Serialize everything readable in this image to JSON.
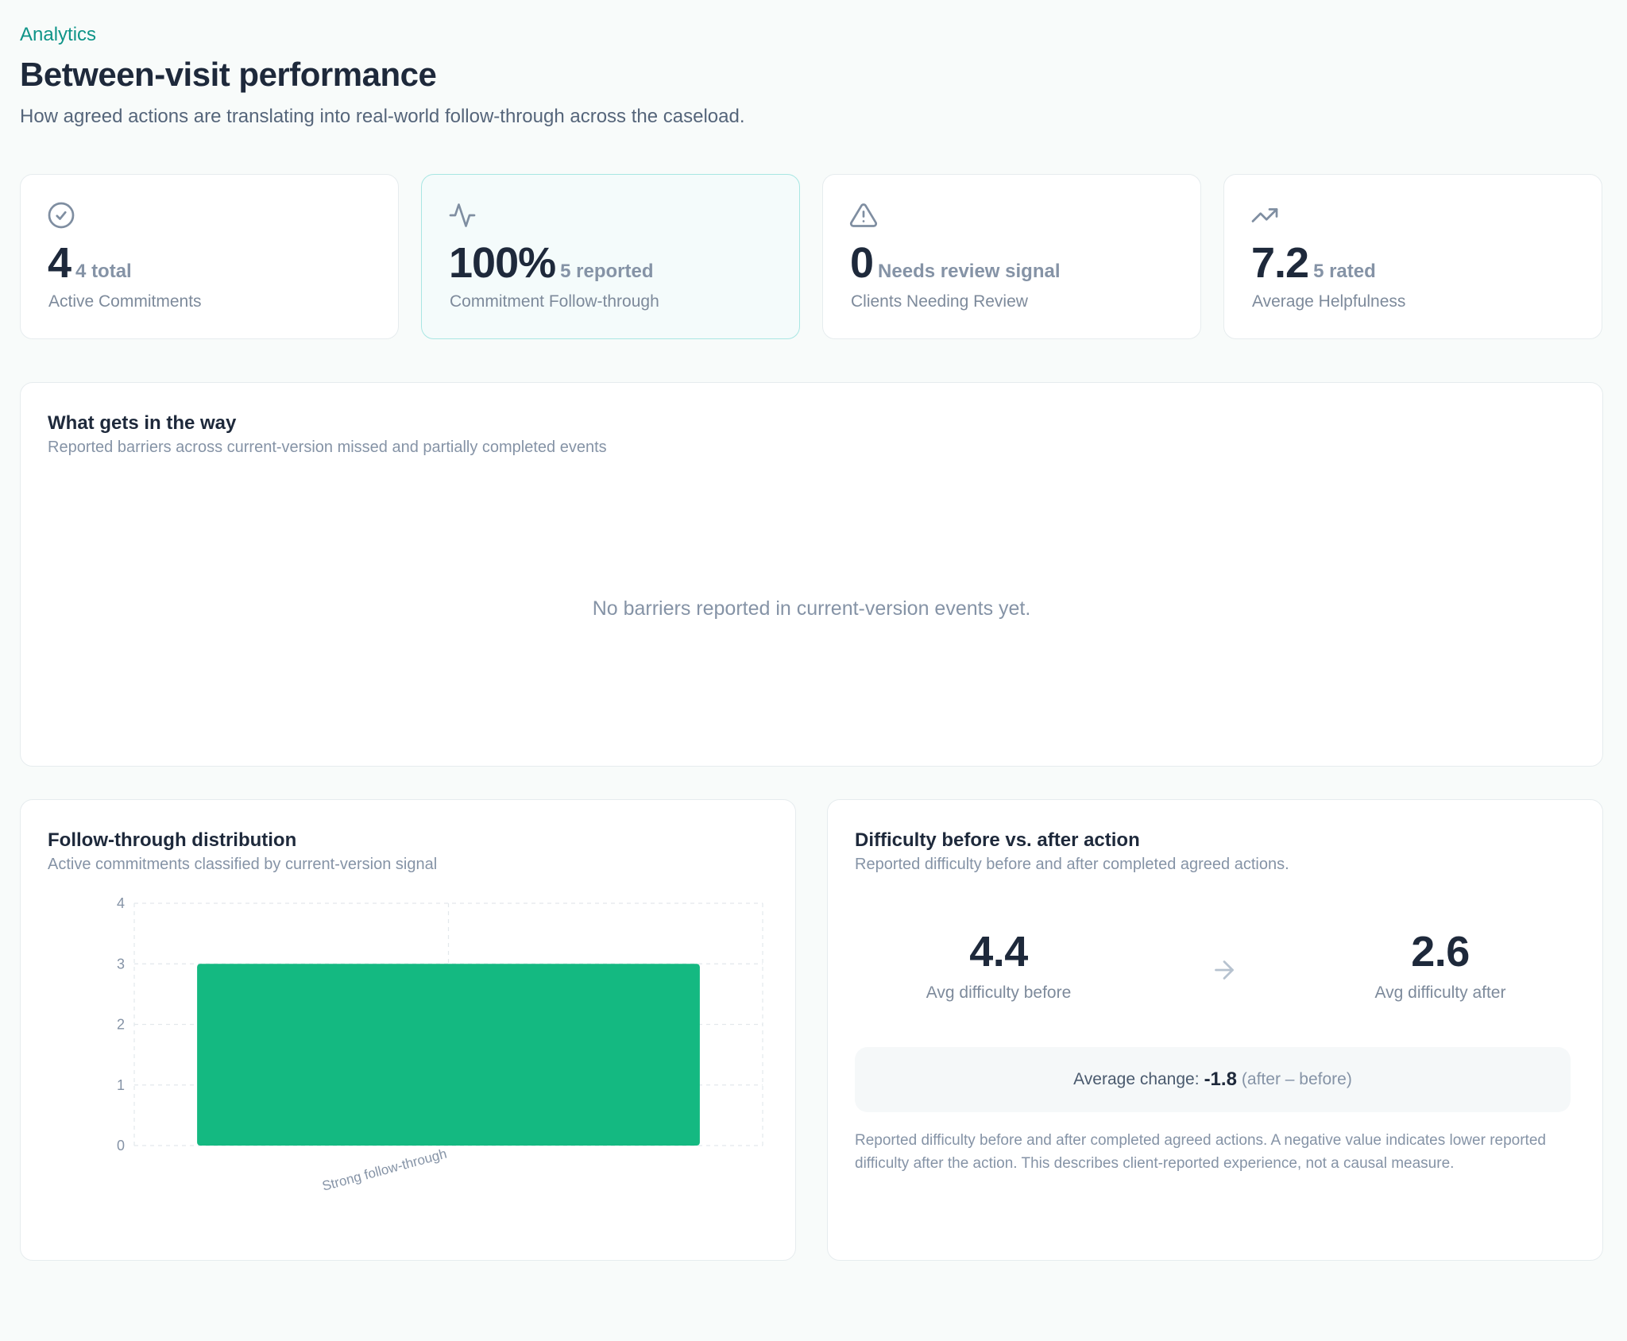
{
  "header": {
    "eyebrow": "Analytics",
    "title": "Between-visit performance",
    "subtitle": "How agreed actions are translating into real-world follow-through across the caseload."
  },
  "stats": [
    {
      "icon": "check-circle-icon",
      "value": "4",
      "sub": "4 total",
      "label": "Active Commitments"
    },
    {
      "icon": "activity-icon",
      "value": "100%",
      "sub": "5 reported",
      "label": "Commitment Follow-through"
    },
    {
      "icon": "warning-triangle-icon",
      "value": "0",
      "sub": "Needs review signal",
      "label": "Clients Needing Review"
    },
    {
      "icon": "trending-up-icon",
      "value": "7.2",
      "sub": "5 rated",
      "label": "Average Helpfulness"
    }
  ],
  "barriers": {
    "title": "What gets in the way",
    "subtitle": "Reported barriers across current-version missed and partially completed events",
    "empty_message": "No barriers reported in current-version events yet."
  },
  "distribution": {
    "title": "Follow-through distribution",
    "subtitle": "Active commitments classified by current-version signal"
  },
  "chart_data": {
    "type": "bar",
    "categories": [
      "Strong follow-through"
    ],
    "values": [
      3
    ],
    "ylim": [
      0,
      4
    ],
    "yticks": [
      "0",
      "1",
      "2",
      "3",
      "4"
    ],
    "grid": true,
    "bar_color": "#14b981"
  },
  "difficulty": {
    "title": "Difficulty before vs. after action",
    "subtitle": "Reported difficulty before and after completed agreed actions.",
    "before_value": "4.4",
    "before_label": "Avg difficulty before",
    "after_value": "2.6",
    "after_label": "Avg difficulty after",
    "change_label": "Average change:",
    "change_value": "-1.8",
    "change_note": "(after – before)",
    "note": "Reported difficulty before and after completed agreed actions. A negative value indicates lower reported difficulty after the action. This describes client-reported experience, not a causal measure."
  },
  "colors": {
    "accent": "#0f9488",
    "bar": "#14b981"
  }
}
